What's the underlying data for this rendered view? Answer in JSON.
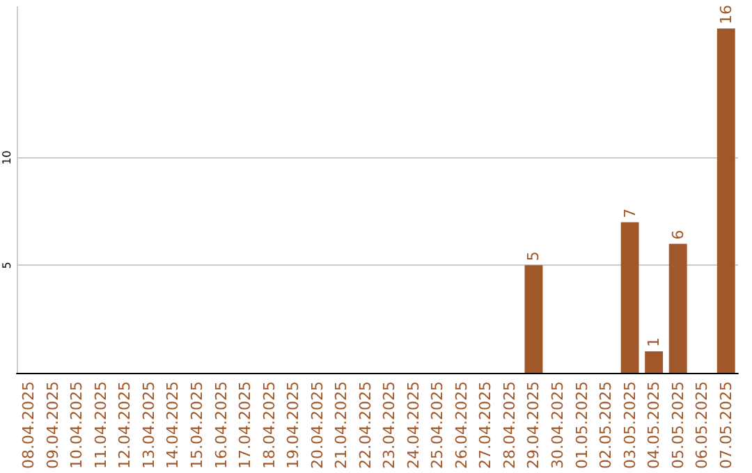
{
  "chart_data": {
    "type": "bar",
    "categories": [
      "08.04.2025",
      "09.04.2025",
      "10.04.2025",
      "11.04.2025",
      "12.04.2025",
      "13.04.2025",
      "14.04.2025",
      "15.04.2025",
      "16.04.2025",
      "17.04.2025",
      "18.04.2025",
      "19.04.2025",
      "20.04.2025",
      "21.04.2025",
      "22.04.2025",
      "23.04.2025",
      "24.04.2025",
      "25.04.2025",
      "26.04.2025",
      "27.04.2025",
      "28.04.2025",
      "29.04.2025",
      "30.04.2025",
      "01.05.2025",
      "02.05.2025",
      "03.05.2025",
      "04.05.2025",
      "05.05.2025",
      "06.05.2025",
      "07.05.2025"
    ],
    "values": [
      0,
      0,
      0,
      0,
      0,
      0,
      0,
      0,
      0,
      0,
      0,
      0,
      0,
      0,
      0,
      0,
      0,
      0,
      0,
      0,
      0,
      5,
      0,
      0,
      0,
      7,
      1,
      6,
      0,
      16
    ],
    "value_labels": [
      null,
      null,
      null,
      null,
      null,
      null,
      null,
      null,
      null,
      null,
      null,
      null,
      null,
      null,
      null,
      null,
      null,
      null,
      null,
      null,
      null,
      "5",
      null,
      null,
      null,
      "7",
      "1",
      "6",
      null,
      "16"
    ],
    "color": "#a0582a",
    "ylim": [
      0,
      17
    ],
    "yticks": [
      5,
      10
    ],
    "grid": "y"
  }
}
